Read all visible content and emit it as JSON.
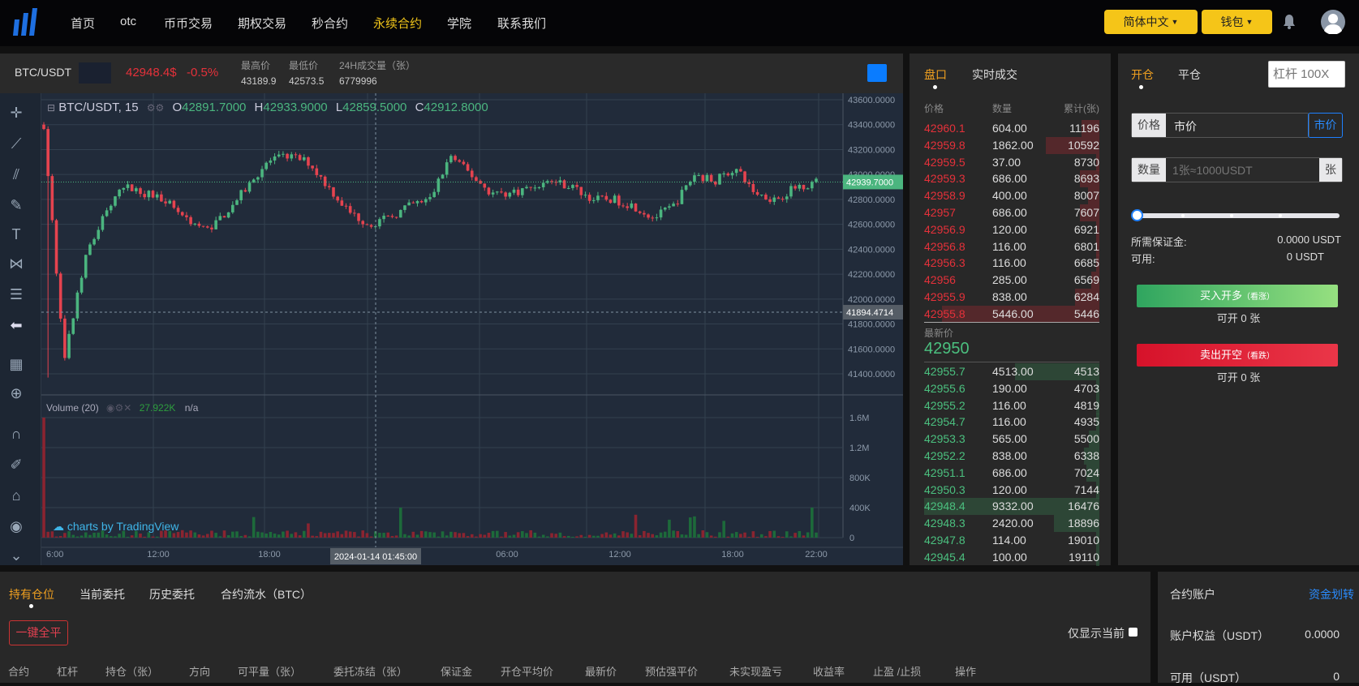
{
  "nav": {
    "items": [
      "首页",
      "otc",
      "币币交易",
      "期权交易",
      "秒合约",
      "永续合约",
      "学院",
      "联系我们"
    ],
    "active_index": 5,
    "language_label": "简体中文",
    "wallet_label": "钱包",
    "brand_color": "#1e6fe0",
    "accent_color": "#f5c518"
  },
  "ticker": {
    "symbol": "BTC/USDT",
    "last_price": "42948.4$",
    "change": "-0.5%",
    "high_label": "最高价",
    "high": "43189.9",
    "low_label": "最低价",
    "low": "42573.5",
    "volume_label": "24H成交量（张）",
    "volume": "6779996"
  },
  "chart": {
    "legend_symbol": "BTC/USDT, 15",
    "open_label": "O",
    "open": "42891.7000",
    "high_label": "H",
    "high": "42933.9000",
    "low_label": "L",
    "low": "42859.5000",
    "close_label": "C",
    "close": "42912.8000",
    "price_ticks": [
      "43600.0000",
      "43400.0000",
      "43200.0000",
      "43000.0000",
      "42800.0000",
      "42600.0000",
      "42400.0000",
      "42200.0000",
      "42000.0000",
      "41800.0000",
      "41600.0000",
      "41400.0000"
    ],
    "price_range": [
      41300,
      43650
    ],
    "current_price_tag": "42939.7000",
    "crosshair_price_tag": "41894.4714",
    "volume_legend": "Volume (20)",
    "volume_value": "27.922K",
    "volume_na": "n/a",
    "volume_ticks": [
      "1.6M",
      "1.2M",
      "800K",
      "400K",
      "0"
    ],
    "time_ticks": [
      "6:00",
      "12:00",
      "18:00",
      "06:00",
      "12:00",
      "18:00",
      "22:00"
    ],
    "crosshair_time": "2024-01-14 01:45:00",
    "watermark": "charts by TradingView",
    "price_path": [
      43400,
      41500,
      42300,
      42700,
      42900,
      42850,
      42800,
      42650,
      42550,
      42700,
      42900,
      43100,
      43150,
      43100,
      42900,
      42700,
      42600,
      42650,
      42750,
      42800,
      43150,
      43000,
      42850,
      42850,
      42900,
      42950,
      42900,
      42800,
      42800,
      42750,
      42650,
      42750,
      43000,
      42950,
      43050,
      42850,
      42800,
      42900,
      42940
    ],
    "up_color": "#4bb57f",
    "down_color": "#e5434f"
  },
  "orderbook": {
    "tabs": [
      "盘口",
      "实时成交"
    ],
    "headers": [
      "价格",
      "数量",
      "累计(张)"
    ],
    "asks": [
      [
        "42960.1",
        "604.00",
        "11196"
      ],
      [
        "42959.8",
        "1862.00",
        "10592"
      ],
      [
        "42959.5",
        "37.00",
        "8730"
      ],
      [
        "42959.3",
        "686.00",
        "8693"
      ],
      [
        "42958.9",
        "400.00",
        "8007"
      ],
      [
        "42957",
        "686.00",
        "7607"
      ],
      [
        "42956.9",
        "120.00",
        "6921"
      ],
      [
        "42956.8",
        "116.00",
        "6801"
      ],
      [
        "42956.3",
        "116.00",
        "6685"
      ],
      [
        "42956",
        "285.00",
        "6569"
      ],
      [
        "42955.9",
        "838.00",
        "6284"
      ],
      [
        "42955.8",
        "5446.00",
        "5446"
      ]
    ],
    "last_label": "最新价",
    "last_price": "42950",
    "bids": [
      [
        "42955.7",
        "4513.00",
        "4513"
      ],
      [
        "42955.6",
        "190.00",
        "4703"
      ],
      [
        "42955.2",
        "116.00",
        "4819"
      ],
      [
        "42954.7",
        "116.00",
        "4935"
      ],
      [
        "42953.3",
        "565.00",
        "5500"
      ],
      [
        "42952.2",
        "838.00",
        "6338"
      ],
      [
        "42951.1",
        "686.00",
        "7024"
      ],
      [
        "42950.3",
        "120.00",
        "7144"
      ],
      [
        "42948.4",
        "9332.00",
        "16476"
      ],
      [
        "42948.3",
        "2420.00",
        "18896"
      ],
      [
        "42947.8",
        "114.00",
        "19010"
      ],
      [
        "42945.4",
        "100.00",
        "19110"
      ]
    ]
  },
  "trade": {
    "tabs": [
      "开仓",
      "平仓"
    ],
    "leverage_placeholder": "杠杆 100X",
    "price_label": "价格",
    "price_value": "市价",
    "market_button": "市价",
    "qty_label": "数量",
    "qty_placeholder": "1张≈1000USDT",
    "qty_unit": "张",
    "slider_value": 0,
    "margin_label": "所需保证金:",
    "margin_value": "0.0000 USDT",
    "available_label": "可用:",
    "available_value": "0 USDT",
    "buy_label": "买入开多",
    "buy_hint": "（看涨）",
    "buy_can_open": "可开 0 张",
    "sell_label": "卖出开空",
    "sell_hint": "（看跌）",
    "sell_can_open": "可开 0 张"
  },
  "positions": {
    "tabs": [
      "持有仓位",
      "当前委托",
      "历史委托",
      "合约流水（BTC）"
    ],
    "close_all": "一键全平",
    "only_current": "仅显示当前",
    "columns": [
      "合约",
      "杠杆",
      "持仓（张）",
      "方向",
      "可平量（张）",
      "委托冻结（张）",
      "保证金",
      "开仓平均价",
      "最新价",
      "预估强平价",
      "未实现盈亏",
      "收益率",
      "止盈 /止损",
      "操作"
    ]
  },
  "account": {
    "title": "合约账户",
    "transfer": "资金划转",
    "equity_label": "账户权益（USDT）",
    "equity": "0.0000",
    "available_label": "可用（USDT）",
    "available": "0"
  }
}
